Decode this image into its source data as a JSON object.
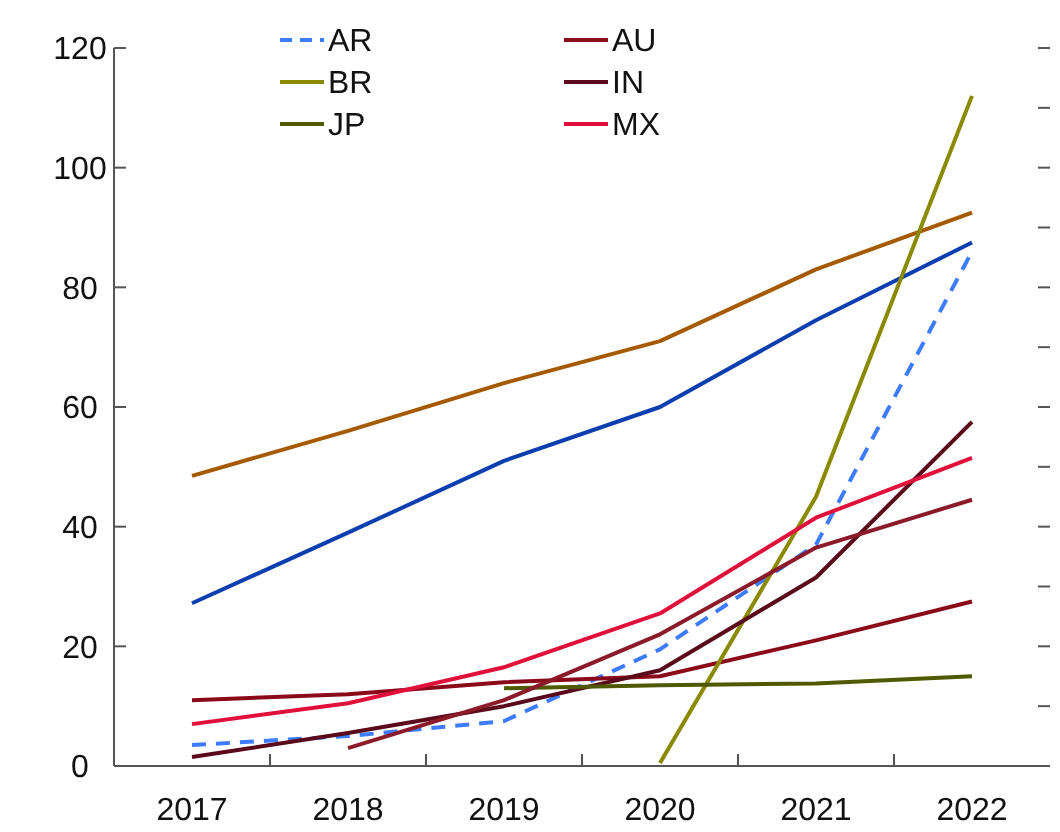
{
  "chart_data": {
    "type": "line",
    "categories": [
      "2017",
      "2018",
      "2019",
      "2020",
      "2021",
      "2022"
    ],
    "series": [
      {
        "color": "#a65a00",
        "values": [
          48.5,
          56,
          64,
          71,
          83,
          92.5
        ]
      },
      {
        "color": "#0b3fb0",
        "values": [
          27.2,
          39,
          51,
          60,
          74.5,
          87.5
        ]
      },
      {
        "name": "AR",
        "color": "#3d7bff",
        "line_style": "dashed",
        "values": [
          3.5,
          5,
          7.5,
          19.5,
          37,
          86
        ]
      },
      {
        "name": "AU",
        "color": "#8b0a1a",
        "values": [
          11,
          12,
          14,
          15,
          21,
          27.5
        ]
      },
      {
        "name": "BR",
        "color": "#8a8a00",
        "values": [
          null,
          null,
          null,
          0.5,
          45,
          112
        ]
      },
      {
        "name": "IN",
        "color": "#5a0a1a",
        "values": [
          1.5,
          5.5,
          10,
          16,
          31.5,
          57.5
        ]
      },
      {
        "name": "JP",
        "color": "#4f5a00",
        "values": [
          null,
          null,
          13,
          13.5,
          13.8,
          15
        ]
      },
      {
        "name": "MX",
        "color": "#e0103a",
        "values": [
          7,
          10.5,
          16.5,
          25.5,
          41.5,
          51.5
        ]
      },
      {
        "color": "#8b1a2a",
        "values": [
          null,
          3,
          11,
          22,
          36.5,
          44.5
        ]
      }
    ],
    "ylim": [
      0,
      120
    ],
    "yticks": [
      0,
      20,
      40,
      60,
      80,
      100,
      120
    ],
    "grid": false,
    "legend": "top",
    "line_style": "solid",
    "marker": "none"
  }
}
